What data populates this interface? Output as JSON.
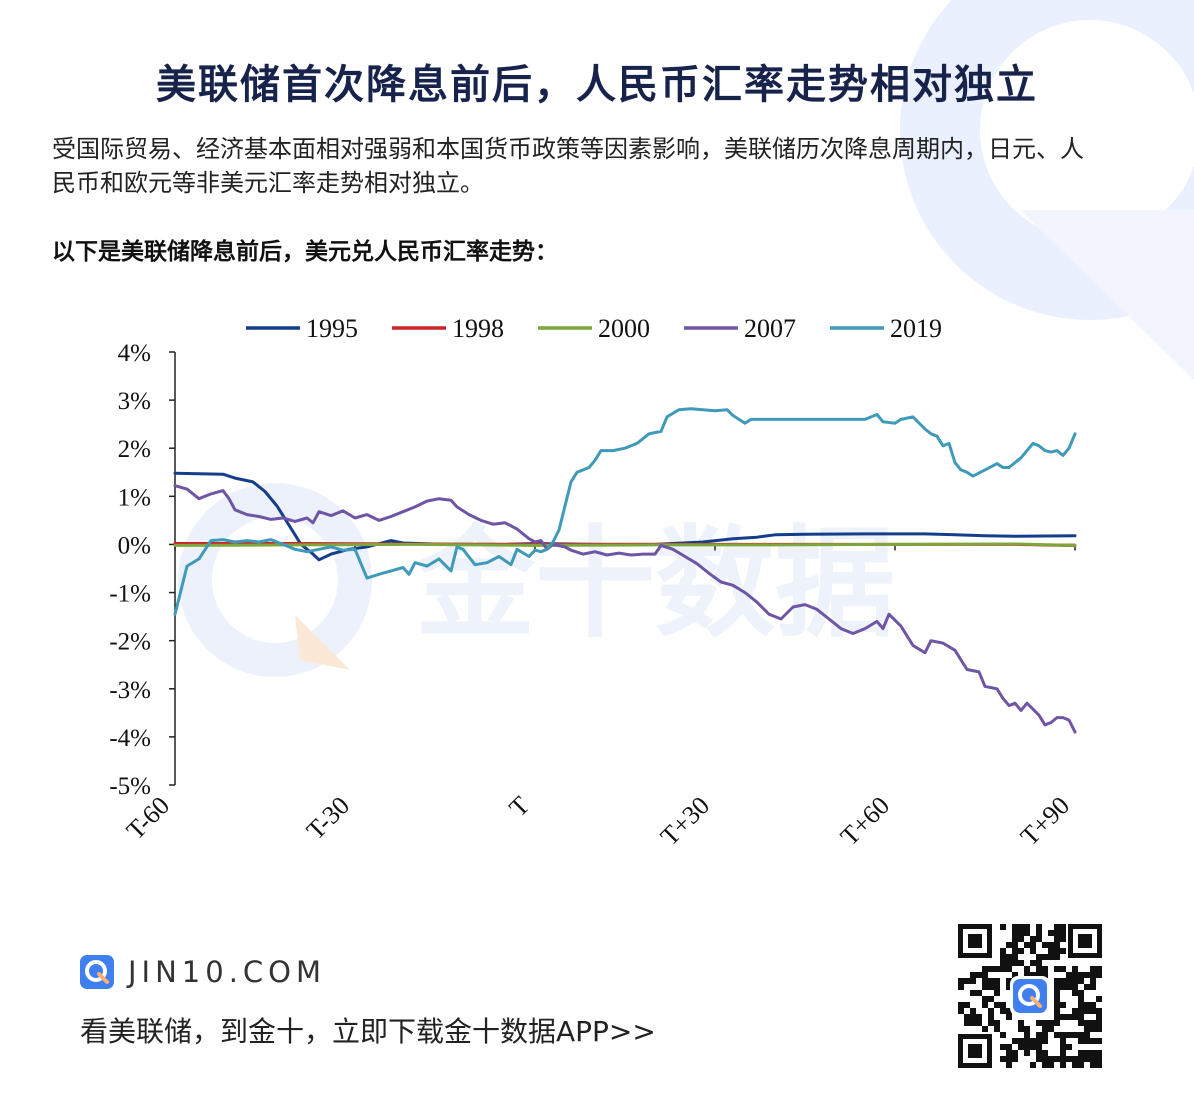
{
  "header": {
    "title": "美联储首次降息前后，人民币汇率走势相对独立",
    "intro": "受国际贸易、经济基本面相对强弱和本国货币政策等因素影响，美联储历次降息周期内，日元、人民币和欧元等非美元汇率走势相对独立。",
    "subhead": "以下是美联储降息前后，美元兑人民币汇率走势："
  },
  "watermark": {
    "text": "金十数据"
  },
  "chart_data": {
    "type": "line",
    "xlabel": "",
    "ylabel": "",
    "x_range": [
      -60,
      90
    ],
    "x_ticks": [
      -60,
      -30,
      0,
      30,
      60,
      90
    ],
    "x_tick_labels": [
      "T-60",
      "T-30",
      "T",
      "T+30",
      "T+60",
      "T+90"
    ],
    "ylim": [
      -5,
      4
    ],
    "y_ticks": [
      4,
      3,
      2,
      1,
      0,
      -1,
      -2,
      -3,
      -4,
      -5
    ],
    "y_tick_labels": [
      "4%",
      "3%",
      "2%",
      "1%",
      "0%",
      "-1%",
      "-2%",
      "-3%",
      "-4%",
      "-5%"
    ],
    "legend_position": "top",
    "grid": false,
    "series": [
      {
        "name": "1995",
        "color": "#143d8c",
        "points": [
          [
            -60,
            1.48
          ],
          [
            -52,
            1.46
          ],
          [
            -50,
            1.38
          ],
          [
            -47,
            1.3
          ],
          [
            -45,
            1.1
          ],
          [
            -43,
            0.8
          ],
          [
            -41,
            0.4
          ],
          [
            -39,
            0.0
          ],
          [
            -37,
            -0.2
          ],
          [
            -36,
            -0.32
          ],
          [
            -34,
            -0.2
          ],
          [
            -31,
            -0.1
          ],
          [
            -28,
            -0.05
          ],
          [
            -24,
            0.08
          ],
          [
            -22,
            0.03
          ],
          [
            -15,
            0.0
          ],
          [
            -5,
            0.0
          ],
          [
            0,
            0.02
          ],
          [
            10,
            0.0
          ],
          [
            20,
            0.0
          ],
          [
            28,
            0.05
          ],
          [
            33,
            0.12
          ],
          [
            37,
            0.15
          ],
          [
            40,
            0.2
          ],
          [
            45,
            0.21
          ],
          [
            55,
            0.22
          ],
          [
            65,
            0.22
          ],
          [
            70,
            0.2
          ],
          [
            75,
            0.18
          ],
          [
            80,
            0.17
          ],
          [
            90,
            0.18
          ]
        ]
      },
      {
        "name": "1998",
        "color": "#cc2229",
        "points": [
          [
            -60,
            0.02
          ],
          [
            -40,
            0.02
          ],
          [
            -20,
            0.01
          ],
          [
            0,
            0.0
          ],
          [
            20,
            0.0
          ],
          [
            40,
            0.0
          ],
          [
            60,
            0.0
          ],
          [
            80,
            0.0
          ],
          [
            88,
            -0.02
          ],
          [
            90,
            -0.02
          ]
        ]
      },
      {
        "name": "2000",
        "color": "#7fa63a",
        "points": [
          [
            -60,
            -0.02
          ],
          [
            -40,
            -0.01
          ],
          [
            -20,
            0.0
          ],
          [
            0,
            -0.02
          ],
          [
            20,
            -0.01
          ],
          [
            40,
            -0.01
          ],
          [
            60,
            0.0
          ],
          [
            80,
            0.01
          ],
          [
            90,
            -0.02
          ]
        ]
      },
      {
        "name": "2007",
        "color": "#6f55a5",
        "points": [
          [
            -60,
            1.22
          ],
          [
            -58,
            1.15
          ],
          [
            -56,
            0.95
          ],
          [
            -54,
            1.05
          ],
          [
            -52,
            1.12
          ],
          [
            -51,
            0.95
          ],
          [
            -50,
            0.72
          ],
          [
            -48,
            0.62
          ],
          [
            -46,
            0.58
          ],
          [
            -44,
            0.52
          ],
          [
            -42,
            0.55
          ],
          [
            -40,
            0.48
          ],
          [
            -38,
            0.55
          ],
          [
            -37,
            0.45
          ],
          [
            -36,
            0.68
          ],
          [
            -34,
            0.6
          ],
          [
            -32,
            0.7
          ],
          [
            -30,
            0.55
          ],
          [
            -28,
            0.62
          ],
          [
            -26,
            0.5
          ],
          [
            -24,
            0.58
          ],
          [
            -22,
            0.68
          ],
          [
            -20,
            0.78
          ],
          [
            -18,
            0.9
          ],
          [
            -16,
            0.95
          ],
          [
            -14,
            0.92
          ],
          [
            -13,
            0.78
          ],
          [
            -11,
            0.62
          ],
          [
            -9,
            0.5
          ],
          [
            -7,
            0.42
          ],
          [
            -5,
            0.45
          ],
          [
            -3,
            0.32
          ],
          [
            -1,
            0.12
          ],
          [
            0,
            0.05
          ],
          [
            1,
            0.08
          ],
          [
            2,
            -0.1
          ],
          [
            3,
            0.0
          ],
          [
            5,
            -0.05
          ],
          [
            6,
            -0.12
          ],
          [
            8,
            -0.2
          ],
          [
            10,
            -0.15
          ],
          [
            12,
            -0.22
          ],
          [
            14,
            -0.18
          ],
          [
            16,
            -0.22
          ],
          [
            18,
            -0.2
          ],
          [
            20,
            -0.2
          ],
          [
            21,
            -0.02
          ],
          [
            23,
            -0.1
          ],
          [
            25,
            -0.25
          ],
          [
            27,
            -0.4
          ],
          [
            29,
            -0.6
          ],
          [
            31,
            -0.78
          ],
          [
            33,
            -0.85
          ],
          [
            35,
            -1.0
          ],
          [
            37,
            -1.2
          ],
          [
            39,
            -1.45
          ],
          [
            41,
            -1.55
          ],
          [
            43,
            -1.3
          ],
          [
            45,
            -1.25
          ],
          [
            47,
            -1.35
          ],
          [
            49,
            -1.55
          ],
          [
            51,
            -1.75
          ],
          [
            53,
            -1.85
          ],
          [
            55,
            -1.75
          ],
          [
            57,
            -1.6
          ],
          [
            58,
            -1.75
          ],
          [
            59,
            -1.45
          ],
          [
            61,
            -1.7
          ],
          [
            63,
            -2.1
          ],
          [
            65,
            -2.25
          ],
          [
            66,
            -2.0
          ],
          [
            68,
            -2.05
          ],
          [
            70,
            -2.2
          ],
          [
            72,
            -2.6
          ],
          [
            74,
            -2.65
          ],
          [
            75,
            -2.95
          ],
          [
            77,
            -3.0
          ],
          [
            78,
            -3.2
          ],
          [
            79,
            -3.35
          ],
          [
            80,
            -3.3
          ],
          [
            81,
            -3.45
          ],
          [
            82,
            -3.3
          ],
          [
            84,
            -3.55
          ],
          [
            85,
            -3.75
          ],
          [
            86,
            -3.7
          ],
          [
            87,
            -3.6
          ],
          [
            88,
            -3.6
          ],
          [
            89,
            -3.65
          ],
          [
            90,
            -3.9
          ]
        ]
      },
      {
        "name": "2019",
        "color": "#3f9ab9",
        "points": [
          [
            -60,
            -1.45
          ],
          [
            -58,
            -0.45
          ],
          [
            -56,
            -0.3
          ],
          [
            -54,
            0.08
          ],
          [
            -52,
            0.1
          ],
          [
            -50,
            0.05
          ],
          [
            -48,
            0.08
          ],
          [
            -46,
            0.05
          ],
          [
            -44,
            0.1
          ],
          [
            -42,
            0.0
          ],
          [
            -40,
            -0.1
          ],
          [
            -38,
            -0.15
          ],
          [
            -36,
            -0.1
          ],
          [
            -34,
            -0.05
          ],
          [
            -32,
            -0.12
          ],
          [
            -30,
            -0.1
          ],
          [
            -28,
            -0.7
          ],
          [
            -26,
            -0.62
          ],
          [
            -24,
            -0.55
          ],
          [
            -22,
            -0.48
          ],
          [
            -21,
            -0.62
          ],
          [
            -20,
            -0.38
          ],
          [
            -18,
            -0.45
          ],
          [
            -16,
            -0.3
          ],
          [
            -14,
            -0.55
          ],
          [
            -13,
            -0.05
          ],
          [
            -12,
            -0.1
          ],
          [
            -10,
            -0.42
          ],
          [
            -8,
            -0.38
          ],
          [
            -6,
            -0.25
          ],
          [
            -4,
            -0.42
          ],
          [
            -3,
            -0.1
          ],
          [
            -1,
            -0.25
          ],
          [
            0,
            -0.12
          ],
          [
            1,
            -0.15
          ],
          [
            2,
            -0.1
          ],
          [
            3,
            0.05
          ],
          [
            4,
            0.3
          ],
          [
            5,
            0.8
          ],
          [
            6,
            1.3
          ],
          [
            7,
            1.5
          ],
          [
            9,
            1.6
          ],
          [
            10,
            1.75
          ],
          [
            11,
            1.95
          ],
          [
            13,
            1.95
          ],
          [
            15,
            2.0
          ],
          [
            17,
            2.1
          ],
          [
            19,
            2.3
          ],
          [
            21,
            2.35
          ],
          [
            22,
            2.65
          ],
          [
            24,
            2.8
          ],
          [
            26,
            2.82
          ],
          [
            30,
            2.78
          ],
          [
            32,
            2.8
          ],
          [
            33,
            2.68
          ],
          [
            35,
            2.52
          ],
          [
            36,
            2.6
          ],
          [
            40,
            2.6
          ],
          [
            45,
            2.6
          ],
          [
            52,
            2.6
          ],
          [
            55,
            2.6
          ],
          [
            57,
            2.7
          ],
          [
            58,
            2.55
          ],
          [
            60,
            2.52
          ],
          [
            61,
            2.6
          ],
          [
            63,
            2.65
          ],
          [
            65,
            2.4
          ],
          [
            66,
            2.3
          ],
          [
            67,
            2.25
          ],
          [
            68,
            2.05
          ],
          [
            69,
            2.1
          ],
          [
            70,
            1.7
          ],
          [
            71,
            1.55
          ],
          [
            72,
            1.5
          ],
          [
            73,
            1.42
          ],
          [
            75,
            1.55
          ],
          [
            77,
            1.68
          ],
          [
            78,
            1.6
          ],
          [
            79,
            1.6
          ],
          [
            81,
            1.8
          ],
          [
            82,
            1.95
          ],
          [
            83,
            2.1
          ],
          [
            84,
            2.05
          ],
          [
            85,
            1.95
          ],
          [
            86,
            1.92
          ],
          [
            87,
            1.95
          ],
          [
            88,
            1.85
          ],
          [
            89,
            2.0
          ],
          [
            90,
            2.3
          ]
        ]
      }
    ]
  },
  "footer": {
    "brand": "JIN10.COM",
    "cta": "看美联储，到金十，立即下载金十数据APP>>"
  },
  "colors": {
    "title": "#17234a",
    "accent": "#3f7ff0",
    "deco": "#e8eefc"
  }
}
